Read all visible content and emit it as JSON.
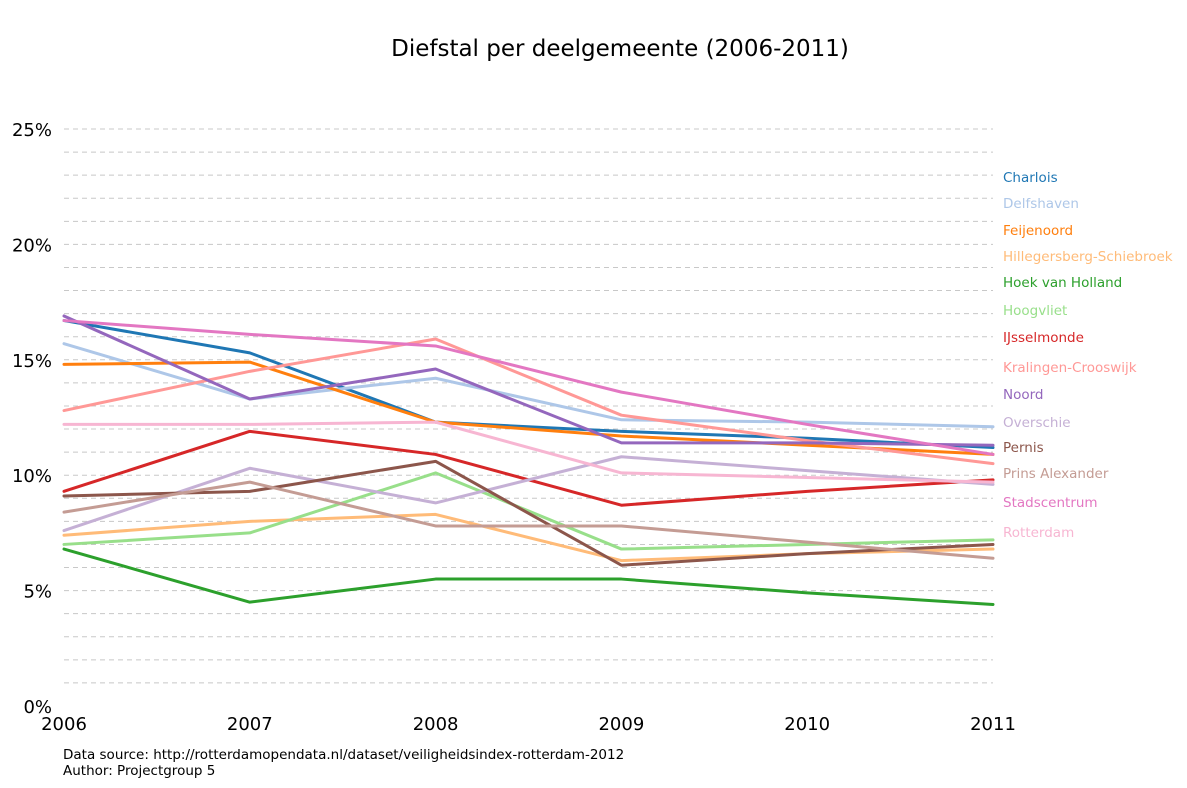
{
  "chart_data": {
    "type": "line",
    "title": "Diefstal per deelgemeente (2006-2011)",
    "xlabel": "",
    "ylabel": "",
    "x": [
      2006,
      2007,
      2008,
      2009,
      2010,
      2011
    ],
    "x_ticks": [
      "2006",
      "2007",
      "2008",
      "2009",
      "2010",
      "2011"
    ],
    "xlim": [
      2006,
      2011
    ],
    "ylim": [
      0,
      25
    ],
    "y_ticks": [
      0,
      5,
      10,
      15,
      20,
      25
    ],
    "y_tick_labels": [
      "0%",
      "5%",
      "10%",
      "15%",
      "20%",
      "25%"
    ],
    "grid": "horizontal dashed, every 1%",
    "legend_placement": "right of plot, labels colored by series",
    "series": [
      {
        "name": "Charlois",
        "color": "#1f77b4",
        "values": [
          16.7,
          15.3,
          12.3,
          11.9,
          11.6,
          11.2
        ]
      },
      {
        "name": "Delfshaven",
        "color": "#aec7e8",
        "values": [
          15.7,
          13.3,
          14.2,
          12.4,
          12.3,
          12.1
        ]
      },
      {
        "name": "Feijenoord",
        "color": "#ff7f0e",
        "values": [
          14.8,
          14.9,
          12.3,
          11.7,
          11.3,
          10.9
        ]
      },
      {
        "name": "Hillegersberg-Schiebroek",
        "color": "#ffbb78",
        "values": [
          7.4,
          8.0,
          8.3,
          6.3,
          6.6,
          6.8
        ]
      },
      {
        "name": "Hoek van Holland",
        "color": "#2ca02c",
        "values": [
          6.8,
          4.5,
          5.5,
          5.5,
          4.9,
          4.4
        ]
      },
      {
        "name": "Hoogvliet",
        "color": "#98df8a",
        "values": [
          7.0,
          7.5,
          10.1,
          6.8,
          7.0,
          7.2
        ]
      },
      {
        "name": "IJsselmonde",
        "color": "#d62728",
        "values": [
          9.3,
          11.9,
          10.9,
          8.7,
          9.3,
          9.8
        ]
      },
      {
        "name": "Kralingen-Crooswijk",
        "color": "#ff9896",
        "values": [
          12.8,
          14.5,
          15.9,
          12.6,
          11.5,
          10.5
        ]
      },
      {
        "name": "Noord",
        "color": "#9467bd",
        "values": [
          16.9,
          13.3,
          14.6,
          11.4,
          11.4,
          11.3
        ]
      },
      {
        "name": "Overschie",
        "color": "#c5b0d5",
        "values": [
          7.6,
          10.3,
          8.8,
          10.8,
          10.2,
          9.6
        ]
      },
      {
        "name": "Pernis",
        "color": "#8c564b",
        "values": [
          9.1,
          9.3,
          10.6,
          6.1,
          6.6,
          7.0
        ]
      },
      {
        "name": "Prins Alexander",
        "color": "#c49c94",
        "values": [
          8.4,
          9.7,
          7.8,
          7.8,
          7.1,
          6.4
        ]
      },
      {
        "name": "Stadscentrum",
        "color": "#e377c2",
        "values": [
          16.7,
          16.1,
          15.6,
          13.6,
          12.2,
          10.9
        ]
      },
      {
        "name": "Rotterdam",
        "color": "#f7b6d2",
        "values": [
          12.2,
          12.2,
          12.3,
          10.1,
          9.9,
          9.7
        ]
      }
    ]
  },
  "footer": {
    "source": "Data source: http://rotterdamopendata.nl/dataset/veiligheidsindex-rotterdam-2012",
    "author": "Author: Projectgroup 5"
  }
}
